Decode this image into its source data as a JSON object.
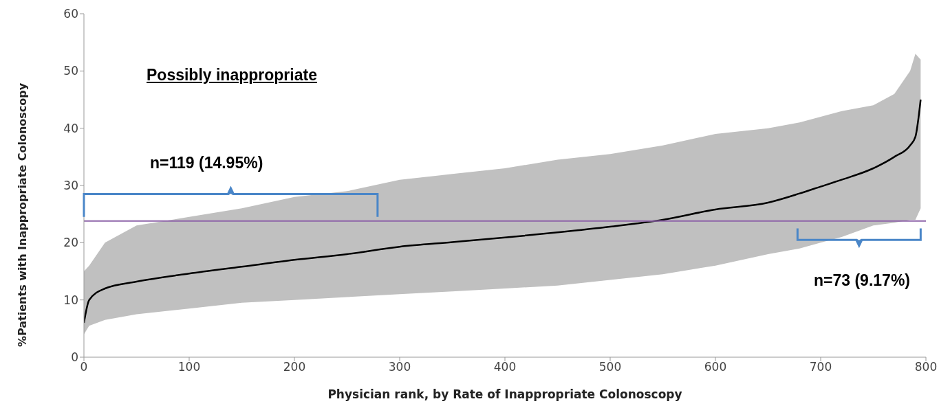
{
  "chart_data": {
    "type": "line",
    "xlabel": "Physician rank, by Rate of Inappropriate Colonoscopy",
    "ylabel": "%Patients with Inappropriate Colonoscopy",
    "annotations": [
      "Possibly inappropriate",
      "n=119 (14.95%)",
      "n=73 (9.17%)"
    ],
    "xlim": [
      0,
      800
    ],
    "xticks": [
      0,
      100,
      200,
      300,
      400,
      500,
      600,
      700,
      800
    ],
    "ylim": [
      0,
      60
    ],
    "yticks": [
      0,
      10,
      20,
      30,
      40,
      50,
      60
    ],
    "grid": false,
    "legend": false,
    "marker": "none",
    "line_style": "solid",
    "ref_lines": [
      {
        "axis": "y",
        "value": 23.8,
        "color": "#8e63a8"
      }
    ],
    "series": [
      {
        "color": "#000000",
        "x": [
          0,
          5,
          20,
          50,
          100,
          150,
          200,
          250,
          300,
          350,
          400,
          450,
          500,
          550,
          600,
          650,
          680,
          700,
          720,
          750,
          770,
          785,
          790,
          795
        ],
        "values": [
          6,
          10,
          12,
          13.2,
          14.6,
          15.8,
          17,
          18,
          19.3,
          20.1,
          20.9,
          21.8,
          22.8,
          24,
          25.8,
          27,
          28.6,
          29.8,
          31,
          33,
          35,
          37,
          38.5,
          45
        ],
        "lower": [
          4,
          5.5,
          6.5,
          7.5,
          8.5,
          9.5,
          10,
          10.5,
          11,
          11.5,
          12,
          12.5,
          13.5,
          14.5,
          16,
          18,
          19,
          20,
          21,
          23,
          23.5,
          24,
          24,
          26
        ],
        "upper": [
          15,
          16,
          20,
          23,
          24.5,
          26,
          28,
          29,
          31,
          32,
          33,
          34.5,
          35.5,
          37,
          39,
          40,
          41,
          42,
          43,
          44,
          46,
          50,
          53,
          52
        ]
      }
    ]
  }
}
